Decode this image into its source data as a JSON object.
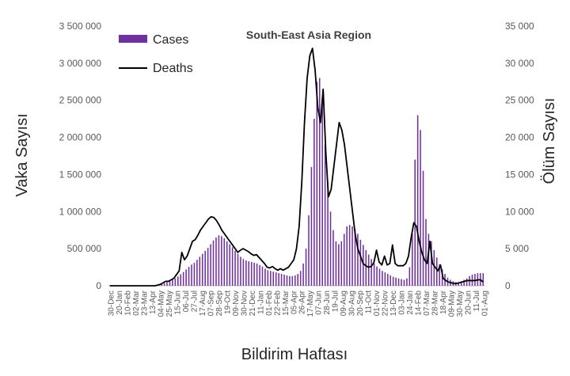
{
  "chart_data": {
    "type": "bar+line",
    "title": "South-East Asia Region",
    "xlabel": "Bildirim Haftası",
    "ylabel_left": "Vaka Sayısı",
    "ylabel_right": "Ölüm Sayısı",
    "ylim_left": [
      0,
      3500000
    ],
    "ylim_right": [
      0,
      35000
    ],
    "left_ticks": [
      "0",
      "500 000",
      "1 000 000",
      "1 500 000",
      "2 000 000",
      "2 500 000",
      "3 000 000",
      "3 500 000"
    ],
    "right_ticks": [
      "0",
      "5 000",
      "10 000",
      "15 000",
      "20 000",
      "25 000",
      "30 000",
      "35 000"
    ],
    "x_tick_labels": [
      "30-Dec",
      "20-Jan",
      "10-Feb",
      "02-Mar",
      "23-Mar",
      "13-Apr",
      "04-May",
      "25-May",
      "15-Jun",
      "06-Jul",
      "27-Jul",
      "17-Aug",
      "07-Sep",
      "28-Sep",
      "19-Oct",
      "09-Nov",
      "30-Nov",
      "21-Dec",
      "11-Jan",
      "01-Feb",
      "22-Feb",
      "15-Mar",
      "05-Apr",
      "26-Apr",
      "17-May",
      "07-Jun",
      "28-Jun",
      "19-Jul",
      "09-Aug",
      "30-Aug",
      "20-Sep",
      "11-Oct",
      "01-Nov",
      "22-Nov",
      "13-Dec",
      "03-Jan",
      "24-Jan",
      "14-Feb",
      "07-Mar",
      "28-Mar",
      "18-Apr",
      "09-May",
      "30-May",
      "20-Jun",
      "11-Jul",
      "01-Aug"
    ],
    "legend": {
      "position": "top-left"
    },
    "series": [
      {
        "name": "Cases",
        "type": "bar",
        "axis": "left",
        "color": "#7030A0",
        "values": [
          0,
          0,
          0,
          0,
          0,
          0,
          0,
          0,
          0,
          0,
          0,
          0,
          1000,
          2000,
          4000,
          6000,
          9000,
          13000,
          18000,
          25000,
          35000,
          48000,
          62000,
          80000,
          100000,
          125000,
          155000,
          185000,
          220000,
          255000,
          285000,
          310000,
          350000,
          390000,
          430000,
          470000,
          510000,
          560000,
          610000,
          650000,
          680000,
          670000,
          640000,
          600000,
          560000,
          520000,
          470000,
          430000,
          390000,
          360000,
          340000,
          330000,
          320000,
          310000,
          300000,
          280000,
          260000,
          230000,
          210000,
          200000,
          190000,
          180000,
          170000,
          160000,
          150000,
          140000,
          130000,
          130000,
          140000,
          160000,
          200000,
          300000,
          500000,
          950000,
          1600000,
          2250000,
          2750000,
          2800000,
          2500000,
          1900000,
          1400000,
          1000000,
          750000,
          600000,
          560000,
          600000,
          700000,
          800000,
          820000,
          800000,
          760000,
          700000,
          620000,
          550000,
          480000,
          420000,
          360000,
          300000,
          260000,
          230000,
          200000,
          180000,
          160000,
          140000,
          120000,
          110000,
          100000,
          90000,
          80000,
          100000,
          250000,
          700000,
          1700000,
          2300000,
          2100000,
          1550000,
          900000,
          700000,
          600000,
          480000,
          380000,
          290000,
          220000,
          160000,
          110000,
          80000,
          60000,
          50000,
          50000,
          60000,
          80000,
          100000,
          130000,
          150000,
          160000,
          170000,
          170000,
          170000
        ]
      },
      {
        "name": "Deaths",
        "type": "line",
        "axis": "right",
        "color": "#000000",
        "values": [
          0,
          0,
          0,
          0,
          0,
          0,
          0,
          0,
          0,
          0,
          0,
          0,
          0,
          0,
          0,
          0,
          0,
          0,
          100,
          200,
          400,
          600,
          600,
          800,
          1000,
          1500,
          2000,
          4500,
          3500,
          4000,
          5000,
          6000,
          6200,
          6800,
          7500,
          8000,
          8500,
          9000,
          9300,
          9200,
          8800,
          8200,
          7500,
          7000,
          6500,
          6000,
          5500,
          5000,
          4500,
          4800,
          5000,
          4800,
          4600,
          4300,
          4100,
          4200,
          3800,
          3400,
          3000,
          2500,
          2400,
          2600,
          2300,
          2100,
          2300,
          2100,
          2300,
          2500,
          3000,
          3500,
          5000,
          8000,
          14000,
          22000,
          28000,
          31000,
          32000,
          29000,
          24000,
          22000,
          26500,
          18000,
          12000,
          13000,
          16000,
          19000,
          22000,
          21000,
          19000,
          16000,
          13000,
          10000,
          7000,
          5000,
          4000,
          3000,
          2700,
          2500,
          2600,
          3100,
          4800,
          3200,
          2800,
          4000,
          2800,
          3000,
          5500,
          3000,
          2700,
          2700,
          2700,
          3000,
          4000,
          6500,
          8500,
          8000,
          6000,
          4500,
          3500,
          3000,
          6000,
          3000,
          2500,
          2000,
          2800,
          1000,
          700,
          500,
          400,
          300,
          300,
          400,
          500,
          600,
          700,
          700,
          700,
          700,
          800,
          800,
          500
        ]
      }
    ]
  }
}
